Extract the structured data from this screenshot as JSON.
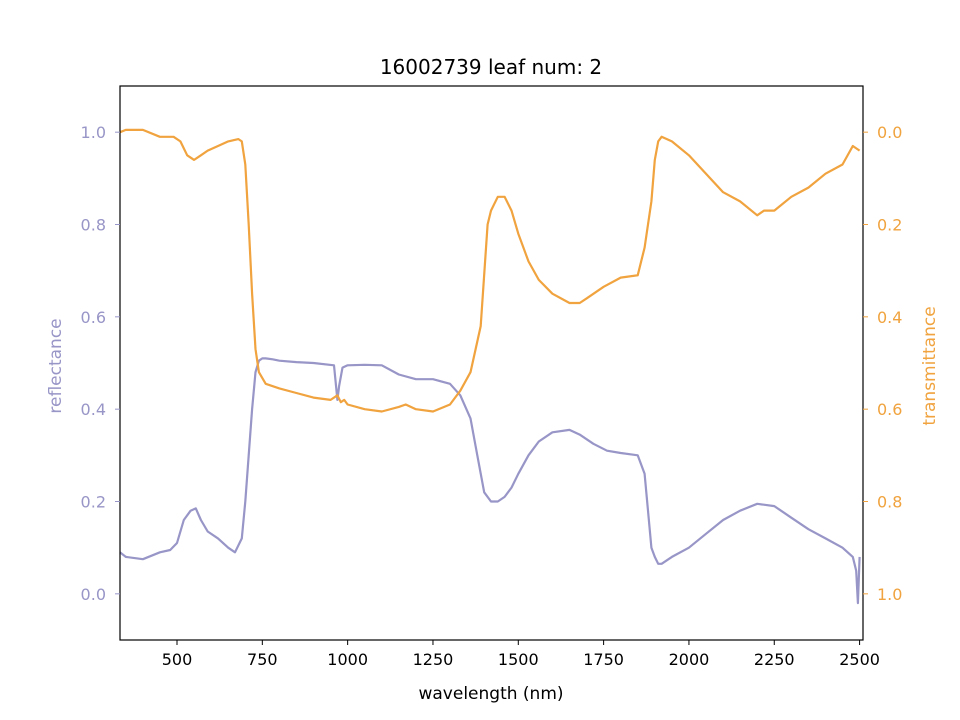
{
  "chart_data": {
    "type": "line",
    "title": "16002739 leaf num: 2",
    "xlabel": "wavelength (nm)",
    "ylabel_left": "reflectance",
    "ylabel_right": "transmittance",
    "xlim": [
      333,
      2510
    ],
    "ylim_left": [
      -0.1,
      1.1
    ],
    "ylim_right": [
      1.1,
      -0.1
    ],
    "x_ticks": [
      500,
      750,
      1000,
      1250,
      1500,
      1750,
      2000,
      2250,
      2500
    ],
    "y_ticks_left": [
      0.0,
      0.2,
      0.4,
      0.6,
      0.8,
      1.0
    ],
    "y_ticks_right": [
      0.0,
      0.2,
      0.4,
      0.6,
      0.8,
      1.0
    ],
    "grid": false,
    "colors": {
      "reflectance": "#9895c7",
      "transmittance": "#f0a33e"
    },
    "series": [
      {
        "axis": "left",
        "x": [
          333,
          350,
          400,
          450,
          480,
          500,
          520,
          540,
          555,
          570,
          590,
          620,
          650,
          670,
          690,
          700,
          710,
          720,
          730,
          740,
          750,
          760,
          780,
          800,
          850,
          900,
          960,
          970,
          975,
          985,
          1000,
          1050,
          1100,
          1150,
          1200,
          1250,
          1300,
          1330,
          1360,
          1380,
          1400,
          1420,
          1440,
          1460,
          1480,
          1500,
          1530,
          1560,
          1600,
          1650,
          1680,
          1720,
          1760,
          1800,
          1850,
          1870,
          1880,
          1890,
          1900,
          1910,
          1920,
          1950,
          2000,
          2050,
          2100,
          2150,
          2200,
          2250,
          2300,
          2350,
          2400,
          2450,
          2480,
          2490,
          2495,
          2500
        ],
        "y": [
          0.09,
          0.08,
          0.075,
          0.09,
          0.095,
          0.11,
          0.16,
          0.18,
          0.185,
          0.16,
          0.135,
          0.12,
          0.1,
          0.09,
          0.12,
          0.2,
          0.3,
          0.4,
          0.48,
          0.505,
          0.51,
          0.51,
          0.508,
          0.505,
          0.502,
          0.5,
          0.495,
          0.42,
          0.45,
          0.49,
          0.495,
          0.496,
          0.495,
          0.475,
          0.465,
          0.465,
          0.455,
          0.43,
          0.38,
          0.3,
          0.22,
          0.2,
          0.2,
          0.21,
          0.23,
          0.26,
          0.3,
          0.33,
          0.35,
          0.355,
          0.345,
          0.325,
          0.31,
          0.305,
          0.3,
          0.26,
          0.18,
          0.1,
          0.08,
          0.065,
          0.065,
          0.08,
          0.1,
          0.13,
          0.16,
          0.18,
          0.195,
          0.19,
          0.165,
          0.14,
          0.12,
          0.1,
          0.08,
          0.05,
          -0.02,
          0.08
        ]
      },
      {
        "axis": "right",
        "x": [
          333,
          350,
          400,
          450,
          490,
          510,
          530,
          550,
          570,
          590,
          620,
          650,
          680,
          690,
          700,
          710,
          720,
          730,
          740,
          760,
          800,
          850,
          900,
          950,
          970,
          980,
          990,
          1000,
          1050,
          1100,
          1150,
          1170,
          1200,
          1250,
          1300,
          1330,
          1360,
          1390,
          1410,
          1420,
          1440,
          1460,
          1480,
          1500,
          1530,
          1560,
          1600,
          1650,
          1680,
          1700,
          1750,
          1800,
          1850,
          1870,
          1890,
          1900,
          1910,
          1920,
          1950,
          2000,
          2050,
          2100,
          2150,
          2200,
          2220,
          2250,
          2300,
          2350,
          2400,
          2450,
          2480,
          2500
        ],
        "y": [
          0.0,
          -0.005,
          -0.005,
          0.01,
          0.01,
          0.02,
          0.05,
          0.06,
          0.05,
          0.04,
          0.03,
          0.02,
          0.015,
          0.02,
          0.07,
          0.2,
          0.35,
          0.47,
          0.52,
          0.545,
          0.555,
          0.565,
          0.575,
          0.58,
          0.57,
          0.585,
          0.58,
          0.59,
          0.6,
          0.605,
          0.595,
          0.59,
          0.6,
          0.605,
          0.59,
          0.56,
          0.52,
          0.42,
          0.2,
          0.17,
          0.14,
          0.14,
          0.17,
          0.22,
          0.28,
          0.32,
          0.35,
          0.37,
          0.37,
          0.36,
          0.335,
          0.315,
          0.31,
          0.25,
          0.15,
          0.06,
          0.02,
          0.01,
          0.02,
          0.05,
          0.09,
          0.13,
          0.15,
          0.18,
          0.17,
          0.17,
          0.14,
          0.12,
          0.09,
          0.07,
          0.03,
          0.04
        ]
      }
    ]
  }
}
